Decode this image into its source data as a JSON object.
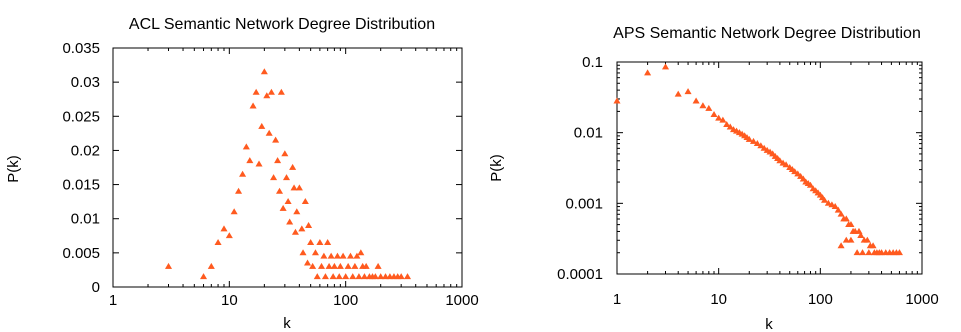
{
  "chart_data": [
    {
      "type": "scatter",
      "title": "ACL Semantic Network Degree Distribution",
      "xlabel": "k",
      "ylabel": "P(k)",
      "xscale": "log",
      "yscale": "linear",
      "xlim": [
        1,
        1000
      ],
      "ylim": [
        0,
        0.035
      ],
      "x_ticks": [
        1,
        10,
        100,
        1000
      ],
      "x_tick_labels": [
        "1",
        "10",
        "100",
        "1000"
      ],
      "y_ticks": [
        0,
        0.005,
        0.01,
        0.015,
        0.02,
        0.025,
        0.03,
        0.035
      ],
      "y_tick_labels": [
        "0",
        "0.005",
        "0.01",
        "0.015",
        "0.02",
        "0.025",
        "0.03",
        "0.035"
      ],
      "grid": false,
      "marker": "triangle",
      "color": "#ff5a1f",
      "points": [
        [
          3,
          0.003
        ],
        [
          6,
          0.0015
        ],
        [
          7,
          0.003
        ],
        [
          8,
          0.0065
        ],
        [
          9,
          0.0085
        ],
        [
          10,
          0.0075
        ],
        [
          11,
          0.011
        ],
        [
          12,
          0.014
        ],
        [
          13,
          0.0165
        ],
        [
          14,
          0.0205
        ],
        [
          15,
          0.0185
        ],
        [
          16,
          0.0265
        ],
        [
          17,
          0.0285
        ],
        [
          18,
          0.018
        ],
        [
          19,
          0.0235
        ],
        [
          20,
          0.0315
        ],
        [
          21,
          0.028
        ],
        [
          22,
          0.0225
        ],
        [
          23,
          0.0285
        ],
        [
          24,
          0.016
        ],
        [
          25,
          0.0215
        ],
        [
          26,
          0.0185
        ],
        [
          27,
          0.014
        ],
        [
          28,
          0.0285
        ],
        [
          29,
          0.0115
        ],
        [
          30,
          0.0195
        ],
        [
          31,
          0.016
        ],
        [
          32,
          0.0125
        ],
        [
          33,
          0.0095
        ],
        [
          35,
          0.0175
        ],
        [
          36,
          0.0145
        ],
        [
          37,
          0.008
        ],
        [
          38,
          0.011
        ],
        [
          40,
          0.0145
        ],
        [
          42,
          0.0085
        ],
        [
          43,
          0.005
        ],
        [
          45,
          0.0125
        ],
        [
          47,
          0.0035
        ],
        [
          48,
          0.009
        ],
        [
          50,
          0.0065
        ],
        [
          52,
          0.003
        ],
        [
          55,
          0.005
        ],
        [
          57,
          0.0015
        ],
        [
          60,
          0.0065
        ],
        [
          62,
          0.003
        ],
        [
          65,
          0.0045
        ],
        [
          67,
          0.0015
        ],
        [
          70,
          0.0065
        ],
        [
          72,
          0.003
        ],
        [
          75,
          0.0045
        ],
        [
          78,
          0.0015
        ],
        [
          80,
          0.003
        ],
        [
          85,
          0.0045
        ],
        [
          88,
          0.0015
        ],
        [
          90,
          0.003
        ],
        [
          95,
          0.0045
        ],
        [
          100,
          0.0015
        ],
        [
          105,
          0.003
        ],
        [
          110,
          0.0045
        ],
        [
          115,
          0.0015
        ],
        [
          120,
          0.003
        ],
        [
          125,
          0.0045
        ],
        [
          130,
          0.0015
        ],
        [
          135,
          0.005
        ],
        [
          140,
          0.003
        ],
        [
          145,
          0.0015
        ],
        [
          150,
          0.003
        ],
        [
          160,
          0.0015
        ],
        [
          170,
          0.0015
        ],
        [
          180,
          0.0015
        ],
        [
          190,
          0.003
        ],
        [
          200,
          0.0015
        ],
        [
          220,
          0.0015
        ],
        [
          240,
          0.0015
        ],
        [
          260,
          0.0015
        ],
        [
          280,
          0.0015
        ],
        [
          300,
          0.0015
        ],
        [
          340,
          0.0015
        ]
      ]
    },
    {
      "type": "scatter",
      "title": "APS Semantic Network Degree Distribution",
      "xlabel": "k",
      "ylabel": "P(k)",
      "xscale": "log",
      "yscale": "log",
      "xlim": [
        1,
        1000
      ],
      "ylim": [
        0.0001,
        0.1
      ],
      "x_ticks": [
        1,
        10,
        100,
        1000
      ],
      "x_tick_labels": [
        "1",
        "10",
        "100",
        "1000"
      ],
      "y_ticks": [
        0.0001,
        0.001,
        0.01,
        0.1
      ],
      "y_tick_labels": [
        "0.0001",
        "0.001",
        "0.01",
        "0.1"
      ],
      "grid": false,
      "marker": "triangle",
      "color": "#ff5a1f",
      "points": [
        [
          1,
          0.028
        ],
        [
          2,
          0.07
        ],
        [
          3,
          0.085
        ],
        [
          4,
          0.035
        ],
        [
          5,
          0.038
        ],
        [
          6,
          0.028
        ],
        [
          7,
          0.024
        ],
        [
          8,
          0.022
        ],
        [
          9,
          0.018
        ],
        [
          10,
          0.016
        ],
        [
          11,
          0.015
        ],
        [
          12,
          0.013
        ],
        [
          13,
          0.012
        ],
        [
          14,
          0.011
        ],
        [
          15,
          0.0105
        ],
        [
          16,
          0.01
        ],
        [
          17,
          0.0095
        ],
        [
          18,
          0.009
        ],
        [
          19,
          0.0085
        ],
        [
          20,
          0.008
        ],
        [
          22,
          0.0075
        ],
        [
          24,
          0.007
        ],
        [
          26,
          0.0065
        ],
        [
          28,
          0.006
        ],
        [
          30,
          0.0056
        ],
        [
          32,
          0.0053
        ],
        [
          34,
          0.005
        ],
        [
          36,
          0.0046
        ],
        [
          38,
          0.0043
        ],
        [
          40,
          0.004
        ],
        [
          43,
          0.0037
        ],
        [
          46,
          0.0035
        ],
        [
          50,
          0.0032
        ],
        [
          53,
          0.003
        ],
        [
          56,
          0.0028
        ],
        [
          60,
          0.0026
        ],
        [
          64,
          0.0024
        ],
        [
          68,
          0.0022
        ],
        [
          72,
          0.002
        ],
        [
          76,
          0.0019
        ],
        [
          80,
          0.0018
        ],
        [
          85,
          0.0016
        ],
        [
          90,
          0.0015
        ],
        [
          95,
          0.0014
        ],
        [
          100,
          0.0013
        ],
        [
          105,
          0.0012
        ],
        [
          110,
          0.0011
        ],
        [
          120,
          0.001
        ],
        [
          130,
          0.00095
        ],
        [
          140,
          0.0009
        ],
        [
          150,
          0.0008
        ],
        [
          160,
          0.0007
        ],
        [
          170,
          0.0006
        ],
        [
          180,
          0.0006
        ],
        [
          190,
          0.0005
        ],
        [
          200,
          0.0005
        ],
        [
          210,
          0.0004
        ],
        [
          220,
          0.0004
        ],
        [
          240,
          0.0004
        ],
        [
          250,
          0.00035
        ],
        [
          270,
          0.0003
        ],
        [
          290,
          0.0003
        ],
        [
          310,
          0.00025
        ],
        [
          330,
          0.00025
        ],
        [
          360,
          0.0002
        ],
        [
          400,
          0.0002
        ],
        [
          440,
          0.0002
        ],
        [
          480,
          0.0002
        ],
        [
          520,
          0.0002
        ],
        [
          560,
          0.0002
        ],
        [
          600,
          0.0002
        ],
        [
          160,
          0.00025
        ],
        [
          180,
          0.0003
        ],
        [
          200,
          0.0003
        ],
        [
          230,
          0.0002
        ],
        [
          260,
          0.0002
        ],
        [
          300,
          0.0002
        ],
        [
          340,
          0.0002
        ],
        [
          380,
          0.0002
        ]
      ]
    }
  ]
}
